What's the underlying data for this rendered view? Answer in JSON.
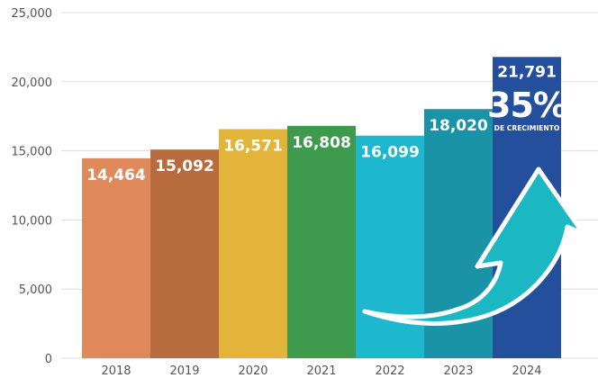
{
  "chart_data": {
    "type": "bar",
    "categories": [
      "2018",
      "2019",
      "2020",
      "2021",
      "2022",
      "2023",
      "2024"
    ],
    "values": [
      14464,
      15092,
      16571,
      16808,
      16099,
      18020,
      21791
    ],
    "value_labels": [
      "14,464",
      "15,092",
      "16,571",
      "16,808",
      "16,099",
      "18,020",
      "21,791"
    ],
    "yticks": [
      "0",
      "5,000",
      "10,000",
      "15,000",
      "20,000",
      "25,000"
    ],
    "ylim": [
      0,
      25000
    ],
    "grid": true,
    "colors": [
      "#E08A5C",
      "#B86B3E",
      "#E2B43A",
      "#3E9A4C",
      "#1DB8CE",
      "#1A93A6",
      "#234F9C"
    ],
    "annotation": {
      "percent": "35%",
      "caption": "DE CRECIMIENTO",
      "arrow_color": "#1BB8C4"
    }
  }
}
